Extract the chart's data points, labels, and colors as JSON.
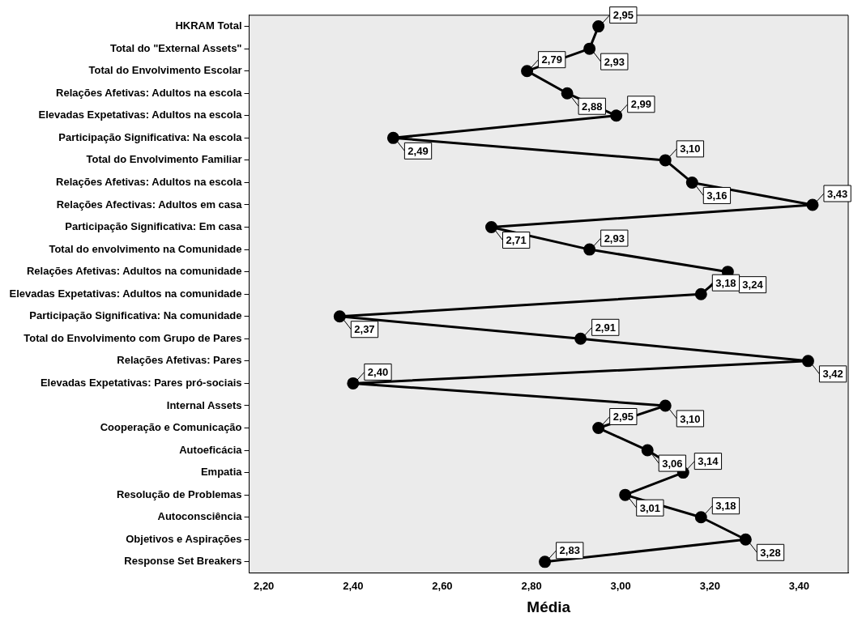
{
  "chart_data": {
    "type": "line",
    "orientation": "horizontal",
    "xlabel": "Média",
    "categories": [
      "HKRAM Total",
      "Total do \"External Assets\"",
      "Total do Envolvimento Escolar",
      "Relações Afetivas: Adultos na escola",
      "Elevadas Expetativas: Adultos na escola",
      "Participação Significativa: Na escola",
      "Total do Envolvimento Familiar",
      "Relações Afetivas: Adultos na escola",
      "Relações Afectivas: Adultos em casa",
      "Participação Significativa: Em casa",
      "Total do envolvimento na Comunidade",
      "Relações Afetivas: Adultos na comunidade",
      "Elevadas Expetativas: Adultos na comunidade",
      "Participação Significativa: Na comunidade",
      "Total do Envolvimento com Grupo de Pares",
      "Relações Afetivas: Pares",
      "Elevadas Expetativas: Pares pró-sociais",
      "Internal Assets",
      "Cooperação e Comunicação",
      "Autoeficácia",
      "Empatia",
      "Resolução de Problemas",
      "Autoconsciência",
      "Objetivos e Aspirações",
      "Response Set Breakers"
    ],
    "values": [
      2.95,
      2.93,
      2.79,
      2.88,
      2.99,
      2.49,
      3.1,
      3.16,
      3.43,
      2.71,
      2.93,
      3.24,
      3.18,
      2.37,
      2.91,
      3.42,
      2.4,
      3.1,
      2.95,
      3.06,
      3.14,
      3.01,
      3.18,
      3.28,
      2.83
    ],
    "value_labels": [
      "2,95",
      "2,93",
      "2,79",
      "2,88",
      "2,99",
      "2,49",
      "3,10",
      "3,16",
      "3,43",
      "2,71",
      "2,93",
      "3,24",
      "3,18",
      "2,37",
      "2,91",
      "3,42",
      "2,40",
      "3,10",
      "2,95",
      "3,06",
      "3,14",
      "3,01",
      "3,18",
      "3,28",
      "2,83"
    ],
    "color": "#000000",
    "marker": "circle",
    "line_style": "solid",
    "xlim": [
      2.167,
      3.51
    ],
    "xticks": [
      {
        "value": 2.2,
        "label": "2,20"
      },
      {
        "value": 2.4,
        "label": "2,40"
      },
      {
        "value": 2.6,
        "label": "2,60"
      },
      {
        "value": 2.8,
        "label": "2,80"
      },
      {
        "value": 3.0,
        "label": "3,00"
      },
      {
        "value": 3.2,
        "label": "3,20"
      },
      {
        "value": 3.4,
        "label": "3,40"
      }
    ],
    "grid": false,
    "legend": false
  }
}
